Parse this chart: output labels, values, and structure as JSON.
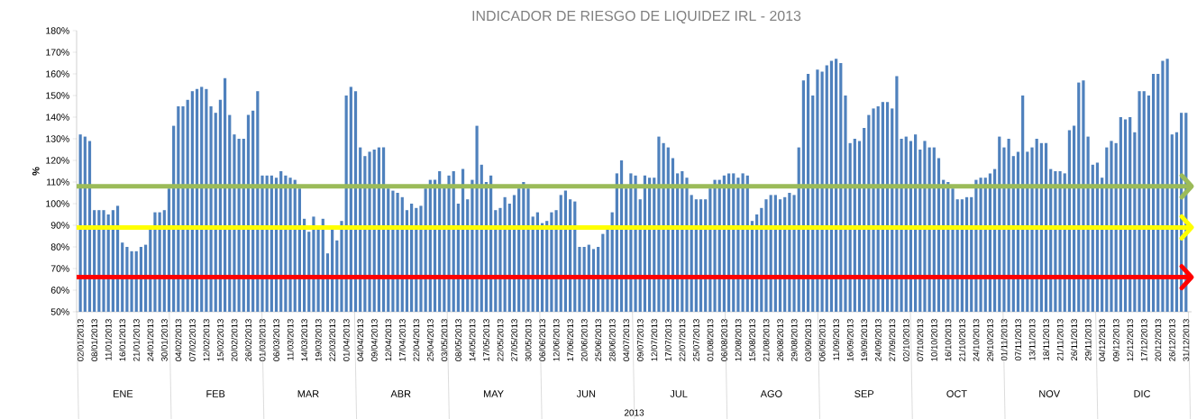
{
  "chart_data": {
    "type": "bar",
    "title": "INDICADOR DE RIESGO DE LIQUIDEZ IRL - 2013",
    "ylabel": "%",
    "color": "#4f81bd",
    "categories": [
      "02/01/2013",
      null,
      null,
      "08/01/2013",
      null,
      null,
      "11/01/2013",
      null,
      null,
      "16/01/2013",
      null,
      null,
      "21/01/2013",
      null,
      null,
      "24/01/2013",
      null,
      null,
      "30/01/2013",
      null,
      null,
      "04/02/2013",
      null,
      null,
      "07/02/2013",
      null,
      null,
      "12/02/2013",
      null,
      null,
      "15/02/2013",
      null,
      null,
      "20/02/2013",
      null,
      null,
      "26/02/2013",
      null,
      null,
      "01/03/2013",
      null,
      null,
      "06/03/2013",
      null,
      null,
      "11/03/2013",
      null,
      null,
      "14/03/2013",
      null,
      null,
      "19/03/2013",
      null,
      null,
      "22/03/2013",
      null,
      null,
      "01/04/2013",
      null,
      null,
      "04/04/2013",
      null,
      null,
      "09/04/2013",
      null,
      null,
      "12/04/2013",
      null,
      null,
      "17/04/2013",
      null,
      null,
      "22/04/2013",
      null,
      null,
      "25/04/2013",
      null,
      null,
      "03/05/2013",
      null,
      null,
      "08/05/2013",
      null,
      null,
      "14/05/2013",
      null,
      null,
      "17/05/2013",
      null,
      null,
      "22/05/2013",
      null,
      null,
      "27/05/2013",
      null,
      null,
      "30/05/2013",
      null,
      null,
      "06/06/2013",
      null,
      null,
      "12/06/2013",
      null,
      null,
      "17/06/2013",
      null,
      null,
      "20/06/2013",
      null,
      null,
      "25/06/2013",
      null,
      null,
      "28/06/2013",
      null,
      null,
      "04/07/2013",
      null,
      null,
      "09/07/2013",
      null,
      null,
      "12/07/2013",
      null,
      null,
      "17/07/2013",
      null,
      null,
      "22/07/2013",
      null,
      null,
      "25/07/2013",
      null,
      null,
      "01/08/2013",
      null,
      null,
      "06/08/2013",
      null,
      null,
      "12/08/2013",
      null,
      null,
      "15/08/2013",
      null,
      null,
      "21/08/2013",
      null,
      null,
      "26/08/2013",
      null,
      null,
      "29/08/2013",
      null,
      null,
      "03/09/2013",
      null,
      null,
      "06/09/2013",
      null,
      null,
      "11/09/2013",
      null,
      null,
      "16/09/2013",
      null,
      null,
      "19/09/2013",
      null,
      null,
      "24/09/2013",
      null,
      null,
      "27/09/2013",
      null,
      null,
      "02/10/2013",
      null,
      null,
      "07/10/2013",
      null,
      null,
      "10/10/2013",
      null,
      null,
      "16/10/2013",
      null,
      null,
      "21/10/2013",
      null,
      null,
      "24/10/2013",
      null,
      null,
      "29/10/2013",
      null,
      null,
      "01/11/2013",
      null,
      null,
      "07/11/2013",
      null,
      null,
      "13/11/2013",
      null,
      null,
      "18/11/2013",
      null,
      null,
      "21/11/2013",
      null,
      null,
      "26/11/2013",
      null,
      null,
      "29/11/2013",
      null,
      null,
      "04/12/2013",
      null,
      null,
      "09/12/2013",
      null,
      null,
      "12/12/2013",
      null,
      null,
      "17/12/2013",
      null,
      null,
      "20/12/2013",
      null,
      null,
      "26/12/2013",
      null,
      null,
      "31/12/2013"
    ],
    "values": [
      132,
      131,
      129,
      97,
      97,
      97,
      95,
      97,
      99,
      82,
      80,
      78,
      78,
      80,
      81,
      88,
      96,
      96,
      97,
      107,
      136,
      145,
      145,
      148,
      152,
      153,
      154,
      153,
      145,
      142,
      148,
      158,
      141,
      132,
      130,
      130,
      141,
      143,
      152,
      113,
      113,
      113,
      112,
      115,
      113,
      112,
      111,
      107,
      93,
      87,
      94,
      89,
      93,
      77,
      88,
      83,
      92,
      150,
      154,
      152,
      126,
      122,
      124,
      125,
      126,
      126,
      107,
      106,
      105,
      103,
      97,
      100,
      98,
      99,
      107,
      111,
      111,
      115,
      108,
      113,
      115,
      100,
      116,
      102,
      111,
      136,
      118,
      110,
      113,
      97,
      98,
      103,
      100,
      104,
      107,
      110,
      107,
      94,
      96,
      91,
      92,
      96,
      97,
      104,
      106,
      102,
      101,
      80,
      80,
      81,
      79,
      80,
      86,
      88,
      96,
      114,
      120,
      107,
      114,
      113,
      102,
      113,
      112,
      112,
      131,
      128,
      126,
      121,
      114,
      115,
      112,
      104,
      102,
      102,
      102,
      107,
      111,
      111,
      113,
      114,
      114,
      112,
      114,
      113,
      92,
      95,
      98,
      102,
      104,
      104,
      102,
      103,
      105,
      104,
      126,
      157,
      160,
      150,
      162,
      161,
      164,
      166,
      167,
      165,
      150,
      128,
      130,
      129,
      135,
      141,
      144,
      145,
      147,
      147,
      144,
      159,
      130,
      131,
      129,
      132,
      125,
      129,
      126,
      126,
      121,
      111,
      110,
      107,
      102,
      102,
      103,
      103,
      111,
      112,
      112,
      114,
      116,
      131,
      126,
      130,
      122,
      124,
      150,
      124,
      126,
      130,
      128,
      128,
      116,
      115,
      115,
      114,
      134,
      136,
      156,
      157,
      131,
      118,
      119,
      112,
      126,
      129,
      128,
      140,
      139,
      140,
      133,
      152,
      152,
      150,
      160,
      160,
      166,
      167,
      132,
      133,
      142,
      142
    ],
    "ylim": [
      50,
      180
    ],
    "yticks": [
      {
        "value": 50,
        "label": "50%"
      },
      {
        "value": 60,
        "label": "60%"
      },
      {
        "value": 70,
        "label": "70%"
      },
      {
        "value": 80,
        "label": "80%"
      },
      {
        "value": 90,
        "label": "90%"
      },
      {
        "value": 100,
        "label": "100%"
      },
      {
        "value": 110,
        "label": "110%"
      },
      {
        "value": 120,
        "label": "120%"
      },
      {
        "value": 130,
        "label": "130%"
      },
      {
        "value": 140,
        "label": "140%"
      },
      {
        "value": 150,
        "label": "150%"
      },
      {
        "value": 160,
        "label": "160%"
      },
      {
        "value": 170,
        "label": "170%"
      },
      {
        "value": 180,
        "label": "180%"
      }
    ],
    "ref_lines": [
      {
        "axis": "y",
        "value": 108,
        "color": "#9bbb59"
      },
      {
        "axis": "y",
        "value": 89,
        "color": "#ffff00"
      },
      {
        "axis": "y",
        "value": 66,
        "color": "#ff0000"
      }
    ],
    "annotations": [
      "ENE",
      "FEB",
      "MAR",
      "ABR",
      "MAY",
      "JUN",
      "JUL",
      "AGO",
      "SEP",
      "OCT",
      "NOV",
      "DIC",
      "2013"
    ]
  }
}
